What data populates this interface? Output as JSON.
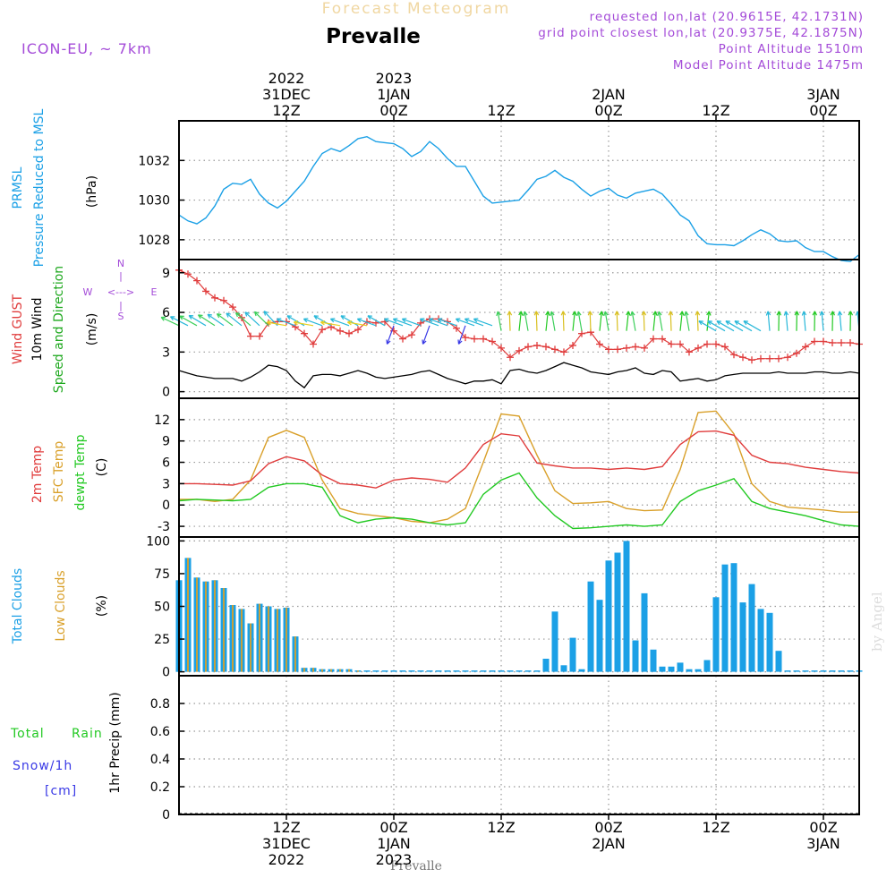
{
  "header": {
    "super_title": "Forecast Meteogram",
    "location": "Prevalle",
    "model": "ICON-EU, ~ 7km",
    "requested": "requested lon,lat (20.9615E, 42.1731N)",
    "grid_point": "grid point closest lon,lat (20.9375E, 42.1875N)",
    "point_alt": "Point Altitude 1510m",
    "model_alt": "Model Point Altitude 1475m",
    "footer": "Prevalle",
    "credit": "by Angel"
  },
  "colors": {
    "pressure": "#1ba0e6",
    "gust": "#e03c3c",
    "wind": "#000000",
    "direction": "#1ea81e",
    "temp2m": "#e03c3c",
    "sfc": "#d9a02a",
    "dewpt": "#22c922",
    "total_clouds": "#1ba0e6",
    "low_clouds": "#d9a02a",
    "rain": "#22c922",
    "snow": "#3a3ae6",
    "meta": "#a44bd8",
    "title_faint": "#f0d7a2"
  },
  "time_axis": {
    "top": [
      {
        "hour": 12,
        "lines": [
          "2022",
          "31DEC",
          "12Z"
        ]
      },
      {
        "hour": 24,
        "lines": [
          "2023",
          "1JAN",
          "00Z"
        ]
      },
      {
        "hour": 36,
        "lines": [
          "",
          "",
          "12Z"
        ]
      },
      {
        "hour": 48,
        "lines": [
          "",
          "2JAN",
          "00Z"
        ]
      },
      {
        "hour": 60,
        "lines": [
          "",
          "",
          "12Z"
        ]
      },
      {
        "hour": 72,
        "lines": [
          "",
          "3JAN",
          "00Z"
        ]
      }
    ],
    "bottom": [
      {
        "hour": 12,
        "lines": [
          "12Z",
          "31DEC",
          "2022"
        ]
      },
      {
        "hour": 24,
        "lines": [
          "00Z",
          "1JAN",
          "2023"
        ]
      },
      {
        "hour": 36,
        "lines": [
          "12Z",
          "",
          ""
        ]
      },
      {
        "hour": 48,
        "lines": [
          "00Z",
          "2JAN",
          ""
        ]
      },
      {
        "hour": 60,
        "lines": [
          "12Z",
          "",
          ""
        ]
      },
      {
        "hour": 72,
        "lines": [
          "00Z",
          "3JAN",
          ""
        ]
      }
    ]
  },
  "panels": {
    "pressure": {
      "labels": [
        "PRMSL",
        "Pressure Reduced to MSL"
      ],
      "unit": "(hPa)"
    },
    "wind": {
      "labels": [
        "Wind GUST",
        "10m Wind",
        "Speed and Direction"
      ],
      "unit": "(m/s)",
      "compass": {
        "n": "N",
        "s": "S",
        "w": "W",
        "e": "E",
        "ns": "|",
        "we": "<--->"
      }
    },
    "temp": {
      "labels": [
        "2m Temp",
        "SFC Temp",
        "dewpt Temp"
      ],
      "unit": "(C)"
    },
    "clouds": {
      "labels": [
        "Total Clouds",
        "Low Clouds"
      ],
      "unit": "(%)"
    },
    "precip": {
      "labels": [
        "Total",
        "Rain",
        "Snow/1h",
        "[cm]"
      ],
      "unit": "1hr Precip (mm)"
    }
  },
  "chart_data": [
    {
      "type": "line",
      "ylabel": "(hPa)",
      "ylim": [
        1027.0,
        1034.0
      ],
      "yticks": [
        1028,
        1030,
        1032
      ],
      "x": [
        0,
        1,
        2,
        3,
        4,
        5,
        6,
        7,
        8,
        9,
        10,
        11,
        12,
        13,
        14,
        15,
        16,
        17,
        18,
        19,
        20,
        21,
        22,
        23,
        24,
        25,
        26,
        27,
        28,
        29,
        30,
        31,
        32,
        33,
        34,
        35,
        36,
        37,
        38,
        39,
        40,
        41,
        42,
        43,
        44,
        45,
        46,
        47,
        48,
        49,
        50,
        51,
        52,
        53,
        54,
        55,
        56,
        57,
        58,
        59,
        60,
        61,
        62,
        63,
        64,
        65,
        66,
        67,
        68,
        69,
        70,
        71,
        72,
        73,
        74,
        75,
        76
      ],
      "series": [
        {
          "name": "PRMSL",
          "values": [
            1029.25,
            1028.95,
            1028.8,
            1029.1,
            1029.7,
            1030.55,
            1030.85,
            1030.8,
            1031.05,
            1030.3,
            1029.85,
            1029.6,
            1029.95,
            1030.45,
            1030.95,
            1031.7,
            1032.35,
            1032.6,
            1032.45,
            1032.75,
            1033.1,
            1033.2,
            1032.95,
            1032.9,
            1032.85,
            1032.6,
            1032.2,
            1032.45,
            1032.95,
            1032.6,
            1032.1,
            1031.7,
            1031.7,
            1030.95,
            1030.2,
            1029.85,
            1029.9,
            1029.95,
            1030.0,
            1030.5,
            1031.05,
            1031.2,
            1031.5,
            1031.15,
            1030.95,
            1030.55,
            1030.2,
            1030.45,
            1030.6,
            1030.25,
            1030.1,
            1030.35,
            1030.45,
            1030.55,
            1030.3,
            1029.8,
            1029.25,
            1028.95,
            1028.2,
            1027.8,
            1027.75,
            1027.75,
            1027.7,
            1027.95,
            1028.25,
            1028.5,
            1028.3,
            1027.95,
            1027.9,
            1027.95,
            1027.6,
            1027.4,
            1027.4,
            1027.15,
            1026.95,
            1026.9,
            1027.25
          ]
        }
      ]
    },
    {
      "type": "line",
      "ylabel": "(m/s)",
      "ylim": [
        -0.5,
        10.0
      ],
      "yticks": [
        0,
        3,
        6,
        9
      ],
      "x": [
        0,
        1,
        2,
        3,
        4,
        5,
        6,
        7,
        8,
        9,
        10,
        11,
        12,
        13,
        14,
        15,
        16,
        17,
        18,
        19,
        20,
        21,
        22,
        23,
        24,
        25,
        26,
        27,
        28,
        29,
        30,
        31,
        32,
        33,
        34,
        35,
        36,
        37,
        38,
        39,
        40,
        41,
        42,
        43,
        44,
        45,
        46,
        47,
        48,
        49,
        50,
        51,
        52,
        53,
        54,
        55,
        56,
        57,
        58,
        59,
        60,
        61,
        62,
        63,
        64,
        65,
        66,
        67,
        68,
        69,
        70,
        71,
        72,
        73,
        74,
        75,
        76
      ],
      "series": [
        {
          "name": "Wind GUST",
          "values": [
            9.2,
            8.9,
            8.4,
            7.6,
            7.1,
            6.9,
            6.4,
            5.6,
            4.2,
            4.2,
            5.2,
            5.3,
            5.3,
            4.9,
            4.4,
            3.6,
            4.7,
            4.9,
            4.6,
            4.4,
            4.7,
            5.3,
            5.2,
            5.3,
            4.6,
            4.0,
            4.3,
            5.2,
            5.5,
            5.5,
            5.3,
            4.8,
            4.1,
            4.0,
            4.0,
            3.8,
            3.3,
            2.6,
            3.1,
            3.4,
            3.5,
            3.4,
            3.2,
            3.0,
            3.5,
            4.4,
            4.5,
            3.6,
            3.2,
            3.2,
            3.3,
            3.4,
            3.3,
            4.0,
            4.0,
            3.6,
            3.6,
            3.0,
            3.3,
            3.6,
            3.6,
            3.4,
            2.8,
            2.6,
            2.4,
            2.5,
            2.5,
            2.5,
            2.6,
            2.9,
            3.4,
            3.8,
            3.8,
            3.7,
            3.7,
            3.7,
            3.6
          ]
        },
        {
          "name": "10m Wind",
          "values": [
            1.6,
            1.4,
            1.2,
            1.1,
            1.0,
            1.0,
            1.0,
            0.8,
            1.1,
            1.5,
            2.0,
            1.9,
            1.6,
            0.8,
            0.3,
            1.2,
            1.3,
            1.3,
            1.2,
            1.4,
            1.6,
            1.4,
            1.1,
            1.0,
            1.1,
            1.2,
            1.3,
            1.5,
            1.6,
            1.3,
            1.0,
            0.8,
            0.6,
            0.8,
            0.8,
            0.9,
            0.6,
            1.6,
            1.7,
            1.5,
            1.4,
            1.6,
            1.9,
            2.2,
            2.0,
            1.8,
            1.5,
            1.4,
            1.3,
            1.5,
            1.6,
            1.8,
            1.4,
            1.3,
            1.6,
            1.5,
            0.8,
            0.9,
            1.0,
            0.8,
            0.9,
            1.2,
            1.3,
            1.4,
            1.4,
            1.4,
            1.4,
            1.5,
            1.4,
            1.4,
            1.4,
            1.5,
            1.5,
            1.4,
            1.4,
            1.5,
            1.4
          ]
        }
      ]
    },
    {
      "type": "line",
      "ylabel": "(C)",
      "ylim": [
        -4.5,
        15.0
      ],
      "yticks": [
        -3,
        0,
        3,
        6,
        9,
        12
      ],
      "x": [
        0,
        2,
        4,
        6,
        8,
        10,
        12,
        14,
        16,
        18,
        20,
        22,
        24,
        26,
        28,
        30,
        32,
        34,
        36,
        38,
        40,
        42,
        44,
        46,
        48,
        50,
        52,
        54,
        56,
        58,
        60,
        62,
        64,
        66,
        68,
        70,
        72,
        74,
        76
      ],
      "series": [
        {
          "name": "2m Temp",
          "values": [
            3.0,
            3.0,
            2.9,
            2.8,
            3.4,
            5.8,
            6.8,
            6.2,
            4.2,
            3.0,
            2.8,
            2.4,
            3.5,
            3.8,
            3.6,
            3.2,
            5.2,
            8.5,
            10.0,
            9.7,
            5.9,
            5.5,
            5.2,
            5.2,
            5.0,
            5.2,
            5.0,
            5.4,
            8.5,
            10.3,
            10.4,
            9.8,
            7.0,
            6.0,
            5.8,
            5.3,
            5.0,
            4.7,
            4.5
          ]
        },
        {
          "name": "SFC Temp",
          "values": [
            0.8,
            0.8,
            0.5,
            0.8,
            3.5,
            9.5,
            10.5,
            9.5,
            3.5,
            -0.5,
            -1.2,
            -1.5,
            -1.8,
            -2.3,
            -2.5,
            -2.0,
            -0.5,
            6.0,
            12.8,
            12.5,
            7.0,
            2.0,
            0.2,
            0.3,
            0.5,
            -0.5,
            -0.8,
            -0.7,
            5.0,
            13.0,
            13.2,
            10.0,
            3.0,
            0.5,
            -0.3,
            -0.5,
            -0.7,
            -1.0,
            -1.0
          ]
        },
        {
          "name": "dewpt Temp",
          "values": [
            0.6,
            0.8,
            0.7,
            0.6,
            0.8,
            2.5,
            3.0,
            3.0,
            2.5,
            -1.5,
            -2.5,
            -2.0,
            -1.8,
            -2.0,
            -2.5,
            -2.8,
            -2.5,
            1.5,
            3.5,
            4.5,
            1.0,
            -1.5,
            -3.3,
            -3.2,
            -3.0,
            -2.8,
            -3.0,
            -2.8,
            0.5,
            2.0,
            2.8,
            3.7,
            0.5,
            -0.5,
            -1.0,
            -1.5,
            -2.2,
            -2.8,
            -3.0
          ]
        }
      ]
    },
    {
      "type": "bar",
      "ylabel": "(%)",
      "ylim": [
        -3,
        103
      ],
      "yticks": [
        0,
        25,
        50,
        75,
        100
      ],
      "x": [
        0,
        1,
        2,
        3,
        4,
        5,
        6,
        7,
        8,
        9,
        10,
        11,
        12,
        13,
        14,
        15,
        16,
        17,
        18,
        19,
        20,
        21,
        22,
        23,
        24,
        25,
        26,
        27,
        28,
        29,
        30,
        31,
        32,
        33,
        34,
        35,
        36,
        37,
        38,
        39,
        40,
        41,
        42,
        43,
        44,
        45,
        46,
        47,
        48,
        49,
        50,
        51,
        52,
        53,
        54,
        55,
        56,
        57,
        58,
        59,
        60,
        61,
        62,
        63,
        64,
        65,
        66,
        67,
        68,
        69,
        70,
        71,
        72,
        73,
        74,
        75,
        76
      ],
      "series": [
        {
          "name": "Total Clouds",
          "values": [
            70,
            87,
            72,
            69,
            70,
            64,
            51,
            48,
            37,
            52,
            50,
            48,
            49,
            27,
            3,
            3,
            2,
            2,
            2,
            2,
            1,
            0,
            0,
            0,
            0,
            0,
            0,
            0,
            0,
            0,
            0,
            0,
            0,
            0,
            0,
            0,
            1,
            0,
            0,
            0,
            0,
            10,
            46,
            5,
            26,
            2,
            69,
            55,
            85,
            91,
            100,
            24,
            60,
            17,
            4,
            4,
            7,
            2,
            2,
            9,
            57,
            82,
            83,
            53,
            67,
            48,
            45,
            16,
            0,
            0,
            0,
            0,
            0,
            0,
            0,
            0,
            0
          ]
        },
        {
          "name": "Low Clouds",
          "values": [
            70,
            87,
            72,
            69,
            70,
            64,
            51,
            48,
            37,
            52,
            50,
            48,
            49,
            27,
            3,
            3,
            2,
            2,
            2,
            2,
            1,
            0,
            0,
            0,
            0,
            0,
            0,
            0,
            0,
            0,
            0,
            0,
            0,
            0,
            0,
            0,
            0,
            0,
            0,
            0,
            0,
            0,
            0,
            0,
            0,
            0,
            0,
            0,
            0,
            0,
            0,
            0,
            0,
            0,
            0,
            0,
            0,
            0,
            0,
            0,
            0,
            0,
            0,
            0,
            0,
            0,
            0,
            0,
            0,
            0,
            0,
            0,
            0,
            0,
            0,
            0,
            0
          ]
        }
      ]
    },
    {
      "type": "line",
      "ylabel": "1hr Precip (mm)",
      "ylim": [
        0.0,
        1.0
      ],
      "yticks": [
        0,
        0.2,
        0.4,
        0.6,
        0.8
      ],
      "x": [
        0,
        76
      ],
      "series": [
        {
          "name": "Total Rain",
          "values": [
            0,
            0
          ]
        },
        {
          "name": "Snow/1h",
          "values": [
            0,
            0
          ]
        }
      ]
    }
  ]
}
